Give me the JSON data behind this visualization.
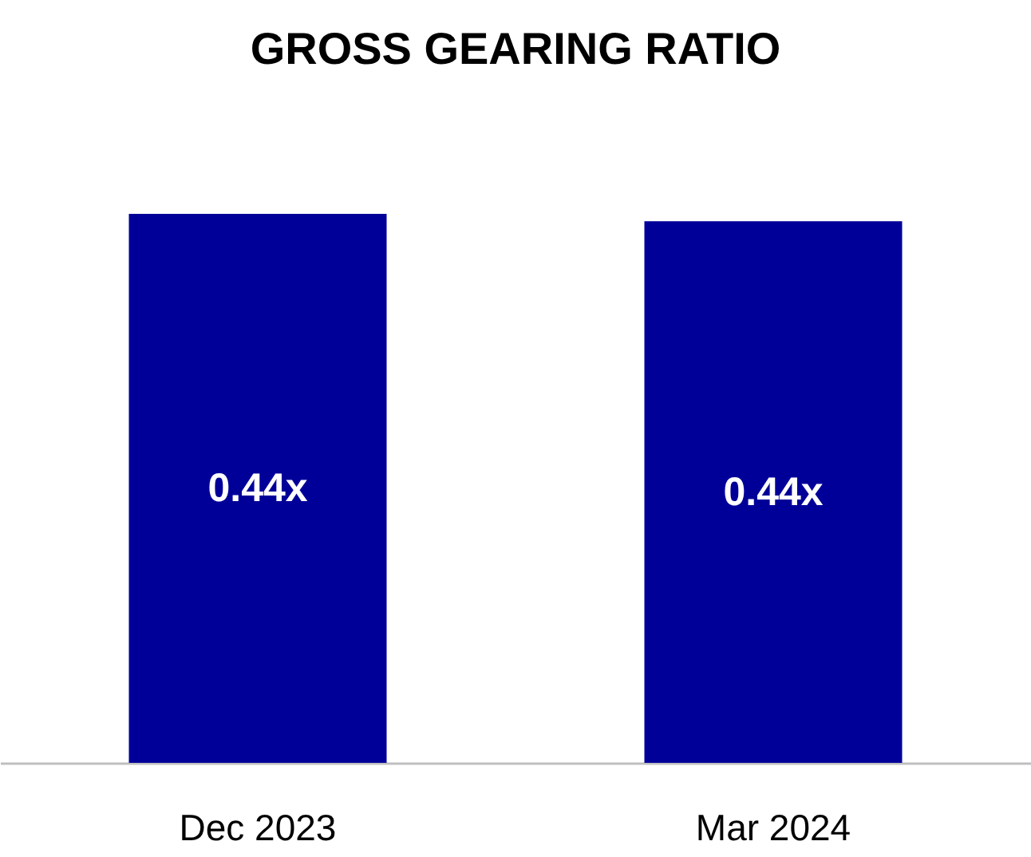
{
  "chart_data": {
    "type": "bar",
    "title": "GROSS GEARING RATIO",
    "categories": [
      "Dec 2023",
      "Mar 2024"
    ],
    "values": [
      0.443,
      0.437
    ],
    "value_labels": [
      "0.44x",
      "0.44x"
    ],
    "color": "#000099"
  }
}
